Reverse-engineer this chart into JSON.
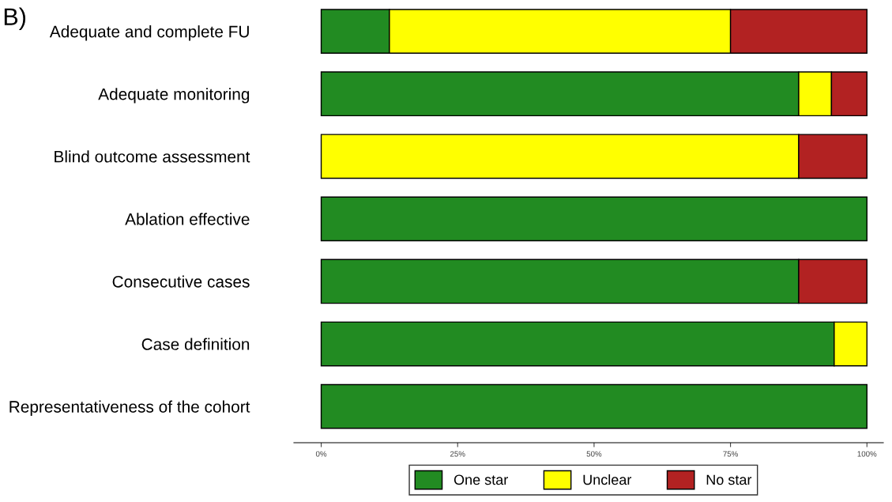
{
  "chart_data": {
    "type": "bar",
    "title": "B)",
    "orientation": "horizontal",
    "stacked": true,
    "categories": [
      "Adequate and complete FU",
      "Adequate monitoring",
      "Blind outcome assessment",
      "Ablation effective",
      "Consecutive cases",
      "Case definition",
      "Representativeness of the cohort"
    ],
    "series": [
      {
        "name": "One star",
        "color": "#228b22",
        "values": [
          12.5,
          87.5,
          0,
          100,
          87.5,
          94,
          100
        ]
      },
      {
        "name": "Unclear",
        "color": "#ffff00",
        "values": [
          62.5,
          6,
          87.5,
          0,
          0,
          6,
          0
        ]
      },
      {
        "name": "No star",
        "color": "#b22222",
        "values": [
          25,
          6.5,
          12.5,
          0,
          12.5,
          0,
          0
        ]
      }
    ],
    "xlim": [
      -5,
      103
    ],
    "xticks": [
      {
        "value": 0,
        "label": "0%"
      },
      {
        "value": 25,
        "label": "25%"
      },
      {
        "value": 50,
        "label": "50%"
      },
      {
        "value": 75,
        "label": "75%"
      },
      {
        "value": 100,
        "label": "100%"
      }
    ],
    "grid": false,
    "legend": "bottom"
  }
}
